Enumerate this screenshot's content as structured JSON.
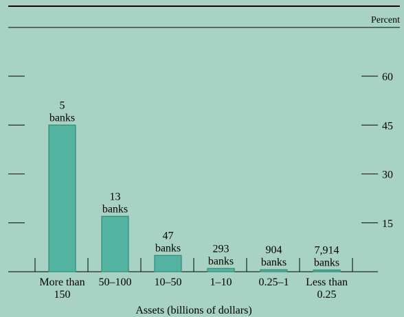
{
  "colors": {
    "background": "#a8d2c4",
    "bar": "#55b3a1",
    "bar_edge": "#2c8b77",
    "axis": "#000000"
  },
  "chart_data": {
    "type": "bar",
    "title": "",
    "xlabel": "Assets (billions of dollars)",
    "ylabel": "Percent",
    "ylim": [
      0,
      70
    ],
    "yticks": [
      15,
      30,
      45,
      60
    ],
    "grid": false,
    "categories": [
      [
        "More than",
        "150"
      ],
      [
        "50–100"
      ],
      [
        "10–50"
      ],
      [
        "1–10"
      ],
      [
        "0.25–1"
      ],
      [
        "Less than",
        "0.25"
      ]
    ],
    "values": [
      45,
      17,
      5,
      1,
      0.6,
      0.3
    ],
    "bar_labels": [
      [
        "5",
        "banks"
      ],
      [
        "13",
        "banks"
      ],
      [
        "47",
        "banks"
      ],
      [
        "293",
        "banks"
      ],
      [
        "904",
        "banks"
      ],
      [
        "7,914",
        "banks"
      ]
    ]
  }
}
